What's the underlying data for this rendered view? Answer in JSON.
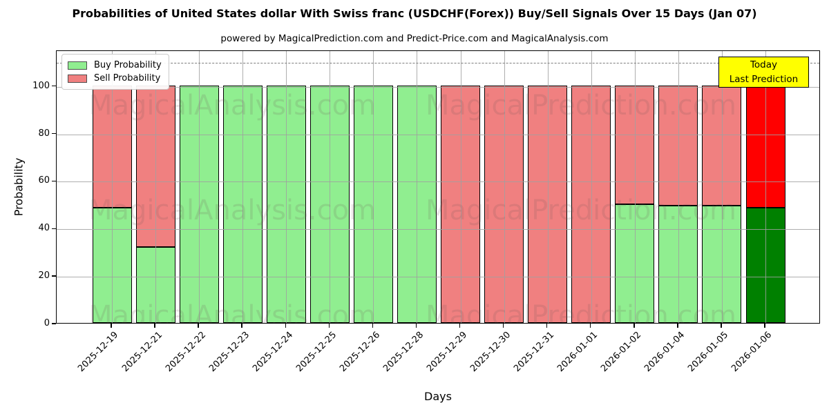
{
  "chart": {
    "title": "Probabilities of United States dollar With Swiss franc (USDCHF(Forex)) Buy/Sell Signals Over 15 Days (Jan 07)",
    "subtitle": "powered by MagicalPrediction.com and Predict-Price.com and MagicalAnalysis.com",
    "xlabel": "Days",
    "ylabel": "Probability",
    "annotation": {
      "line1": "Today",
      "line2": "Last Prediction",
      "bg_color": "#FFFF00",
      "border_color": "#000000"
    },
    "watermarks": [
      "MagicalAnalysis.com",
      "MagicalPrediction.com"
    ]
  },
  "chart_data": {
    "type": "bar",
    "stacked": true,
    "title": "Probabilities of United States dollar With Swiss franc (USDCHF(Forex)) Buy/Sell Signals Over 15 Days (Jan 07)",
    "xlabel": "Days",
    "ylabel": "Probability",
    "categories": [
      "2025-12-19",
      "2025-12-21",
      "2025-12-22",
      "2025-12-23",
      "2025-12-24",
      "2025-12-25",
      "2025-12-26",
      "2025-12-28",
      "2025-12-29",
      "2025-12-30",
      "2025-12-31",
      "2026-01-01",
      "2026-01-02",
      "2026-01-04",
      "2026-01-05",
      "2026-01-06"
    ],
    "series": [
      {
        "name": "Buy Probability",
        "color": "#90EE90",
        "today_color": "#008000",
        "values": [
          48.5,
          32,
          100,
          100,
          100,
          100,
          100,
          100,
          0,
          0,
          0,
          0,
          50,
          49.5,
          49.5,
          48.5
        ]
      },
      {
        "name": "Sell Probability",
        "color": "#F08080",
        "today_color": "#FF0000",
        "values": [
          51.5,
          68,
          0,
          0,
          0,
          0,
          0,
          0,
          100,
          100,
          100,
          100,
          50,
          50.5,
          50.5,
          51.5
        ]
      }
    ],
    "today_index": 15,
    "yticks": [
      0,
      20,
      40,
      60,
      80,
      100
    ],
    "ylim": [
      0,
      115
    ],
    "dashed_line_y": 110,
    "grid": true,
    "legend_position": "upper left"
  }
}
